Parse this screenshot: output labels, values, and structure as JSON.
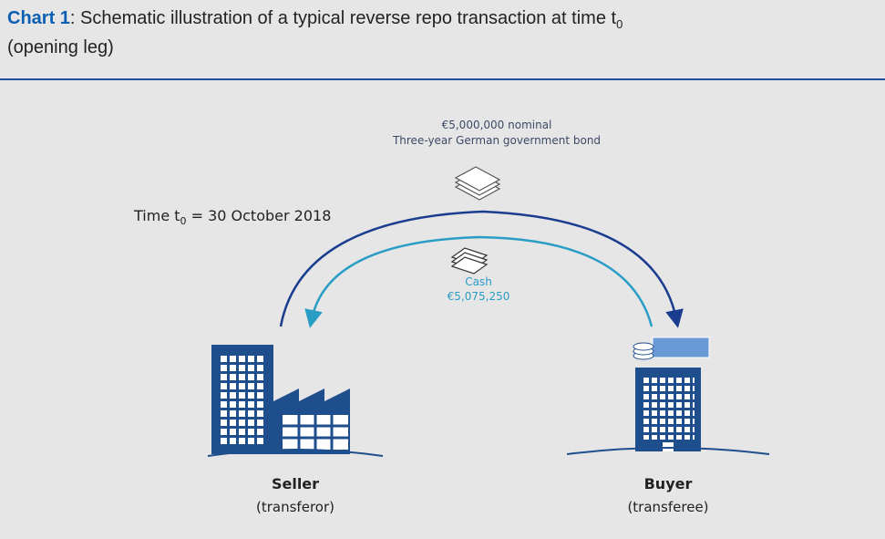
{
  "header": {
    "label": "Chart 1",
    "title": ": Schematic illustration of a typical reverse repo transaction at time t",
    "title_subscript": "0",
    "title_line2": "(opening leg)"
  },
  "bond": {
    "line1": "€5,000,000 nominal",
    "line2": "Three-year German government bond"
  },
  "time": {
    "prefix": "Time t",
    "subscript": "0",
    "suffix": " = 30 October 2018"
  },
  "cash": {
    "label": "Cash",
    "amount": "€5,075,250"
  },
  "seller": {
    "name": "Seller",
    "role": "(transferor)"
  },
  "buyer": {
    "name": "Buyer",
    "role": "(transferee)"
  }
}
